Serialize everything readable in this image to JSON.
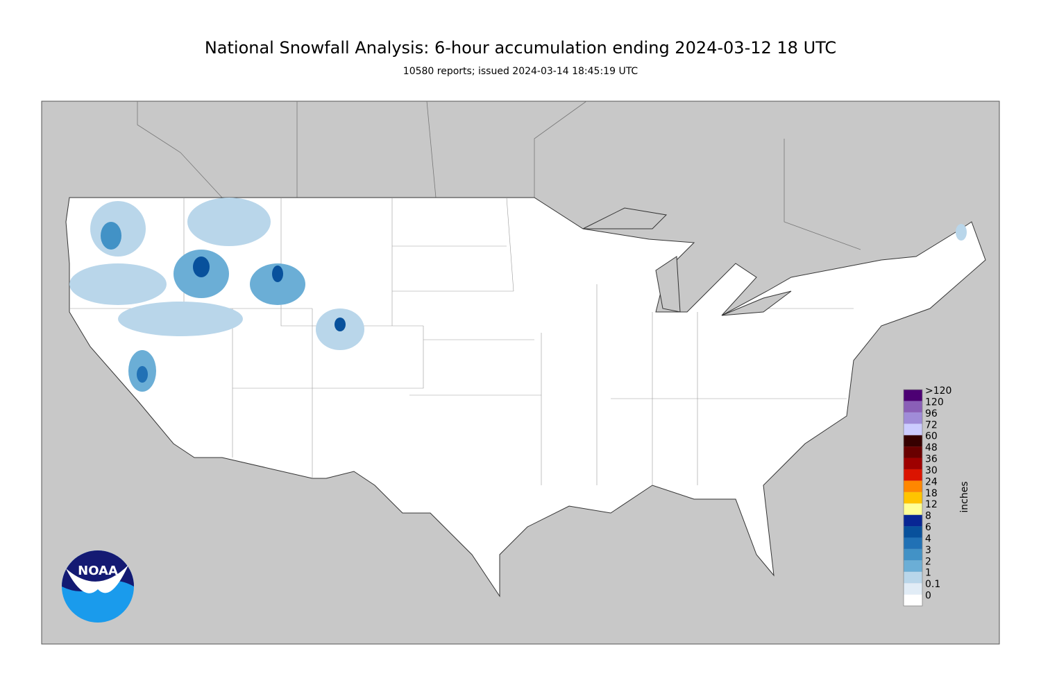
{
  "header": {
    "title": "National Snowfall Analysis: 6-hour accumulation ending 2024-03-12 18 UTC",
    "subtitle": "10580 reports; issued 2024-03-14 18:45:19 UTC"
  },
  "legend": {
    "unit": "inches",
    "items": [
      {
        "label": "0",
        "color": "#ffffff"
      },
      {
        "label": "0.1",
        "color": "#e1ecf6"
      },
      {
        "label": "1",
        "color": "#b9d6ea"
      },
      {
        "label": "2",
        "color": "#6baed6"
      },
      {
        "label": "3",
        "color": "#4292c6"
      },
      {
        "label": "4",
        "color": "#2171b5"
      },
      {
        "label": "6",
        "color": "#08519c"
      },
      {
        "label": "8",
        "color": "#082694"
      },
      {
        "label": "12",
        "color": "#ffff96"
      },
      {
        "label": "18",
        "color": "#ffc400"
      },
      {
        "label": "24",
        "color": "#ff8700"
      },
      {
        "label": "30",
        "color": "#db1400"
      },
      {
        "label": "36",
        "color": "#9e0000"
      },
      {
        "label": "48",
        "color": "#690000"
      },
      {
        "label": "60",
        "color": "#360000"
      },
      {
        "label": "72",
        "color": "#ccccff"
      },
      {
        "label": "96",
        "color": "#a08cd8"
      },
      {
        "label": "120",
        "color": "#8a5fb7"
      },
      {
        "label": ">120",
        "color": "#4c0073"
      }
    ]
  },
  "logo": {
    "text": "NOAA"
  }
}
